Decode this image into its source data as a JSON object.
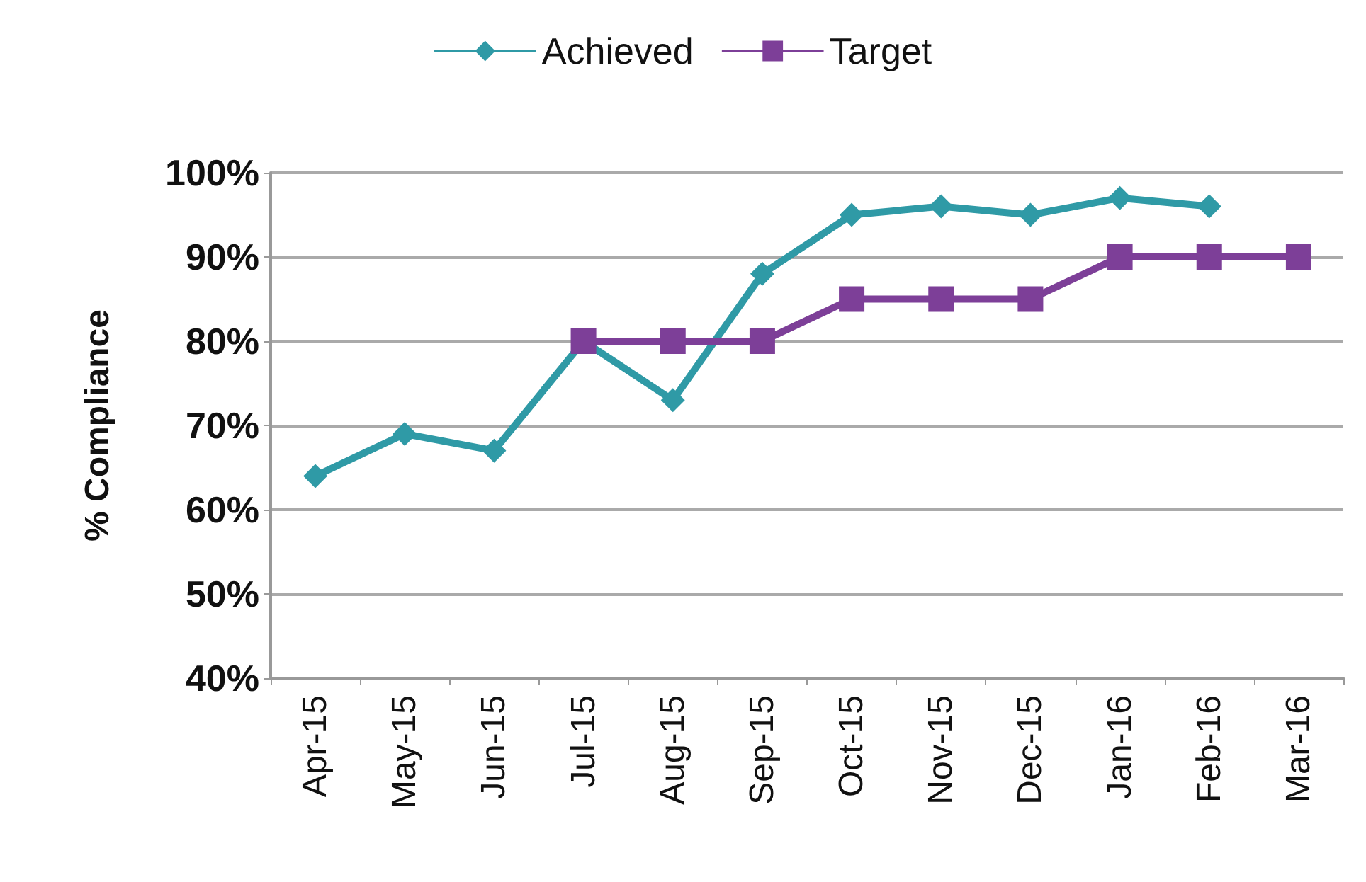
{
  "chart_data": {
    "type": "line",
    "ylabel": "% Compliance",
    "categories": [
      "Apr-15",
      "May-15",
      "Jun-15",
      "Jul-15",
      "Aug-15",
      "Sep-15",
      "Oct-15",
      "Nov-15",
      "Dec-15",
      "Jan-16",
      "Feb-16",
      "Mar-16"
    ],
    "series": [
      {
        "name": "Achieved",
        "color": "#2f9aa6",
        "marker": "diamond",
        "values": [
          64,
          69,
          67,
          80,
          73,
          88,
          95,
          96,
          95,
          97,
          96,
          null
        ]
      },
      {
        "name": "Target",
        "color": "#7d3f98",
        "marker": "square",
        "values": [
          null,
          null,
          null,
          80,
          80,
          80,
          85,
          85,
          85,
          90,
          90,
          90
        ]
      }
    ],
    "ylim": [
      40,
      100
    ],
    "yticks": [
      {
        "value": 40,
        "label": "40%"
      },
      {
        "value": 50,
        "label": "50%"
      },
      {
        "value": 60,
        "label": "60%"
      },
      {
        "value": 70,
        "label": "70%"
      },
      {
        "value": 80,
        "label": "80%"
      },
      {
        "value": 90,
        "label": "90%"
      },
      {
        "value": 100,
        "label": "100%"
      }
    ],
    "grid": "y",
    "legend": "top",
    "line_style": "solid"
  }
}
